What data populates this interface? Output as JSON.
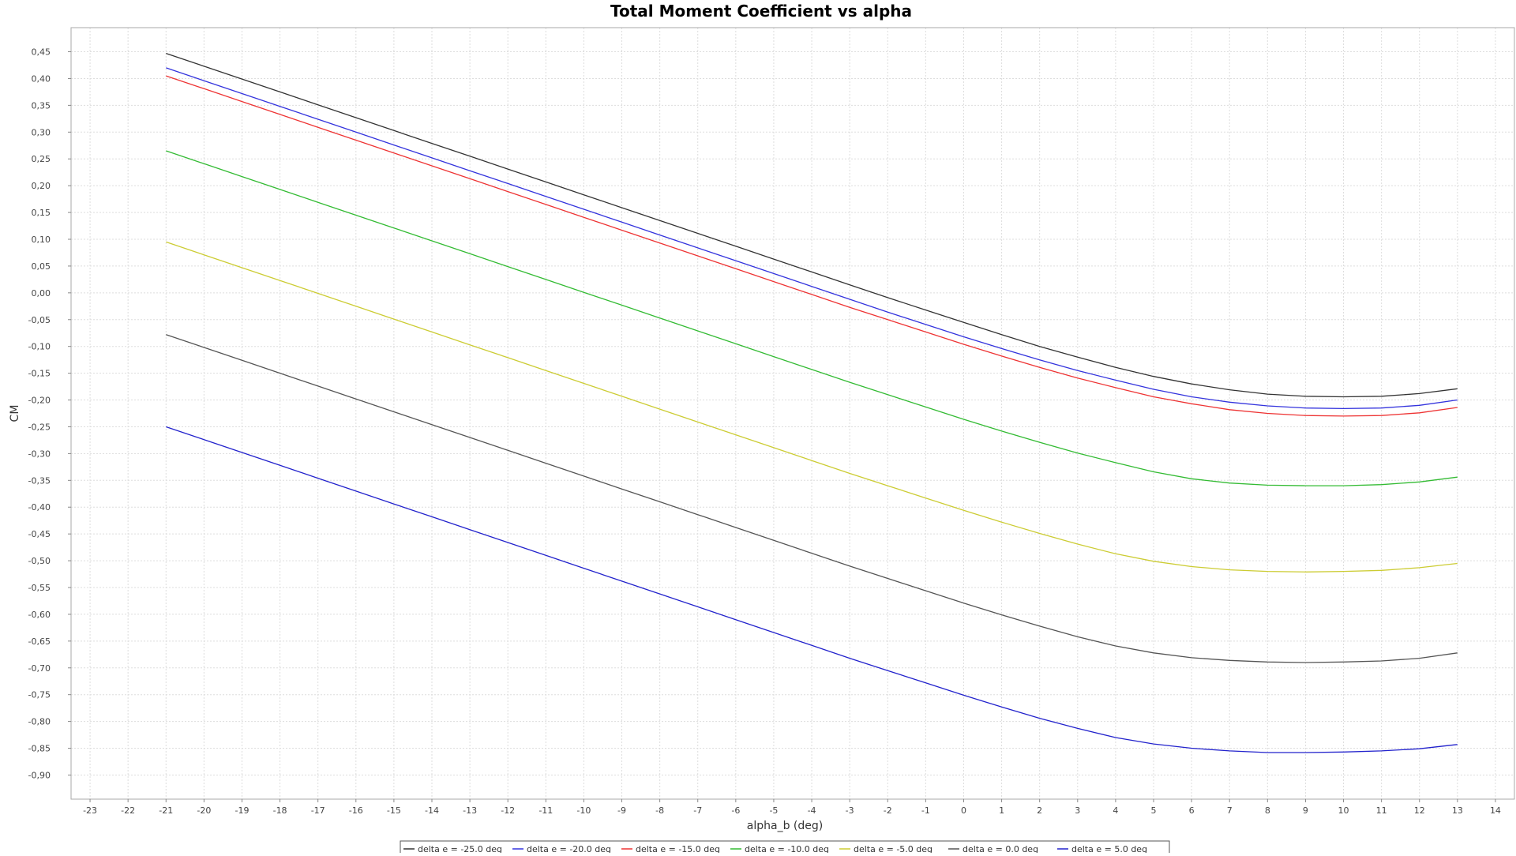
{
  "chart_data": {
    "type": "line",
    "title": "Total Moment Coefficient vs alpha",
    "xlabel": "alpha_b (deg)",
    "ylabel": "CM",
    "xlim": [
      -23.5,
      14.5
    ],
    "ylim": [
      -0.945,
      0.495
    ],
    "x_ticks": [
      -23,
      -22,
      -21,
      -20,
      -19,
      -18,
      -17,
      -16,
      -15,
      -14,
      -13,
      -12,
      -11,
      -10,
      -9,
      -8,
      -7,
      -6,
      -5,
      -4,
      -3,
      -2,
      -1,
      0,
      1,
      2,
      3,
      4,
      5,
      6,
      7,
      8,
      9,
      10,
      11,
      12,
      13,
      14
    ],
    "x_tick_labels": [
      "-23",
      "-22",
      "-21",
      "-20",
      "-19",
      "-18",
      "-17",
      "-16",
      "-15",
      "-14",
      "-13",
      "-12",
      "-11",
      "-10",
      "-9",
      "-8",
      "-7",
      "-6",
      "-5",
      "-4",
      "-3",
      "-2",
      "-1",
      "0",
      "1",
      "2",
      "3",
      "4",
      "5",
      "6",
      "7",
      "8",
      "9",
      "10",
      "11",
      "12",
      "13",
      "14"
    ],
    "y_ticks": [
      0.45,
      0.4,
      0.35,
      0.3,
      0.25,
      0.2,
      0.15,
      0.1,
      0.05,
      0.0,
      -0.05,
      -0.1,
      -0.15,
      -0.2,
      -0.25,
      -0.3,
      -0.35,
      -0.4,
      -0.45,
      -0.5,
      -0.55,
      -0.6,
      -0.65,
      -0.7,
      -0.75,
      -0.8,
      -0.85,
      -0.9
    ],
    "y_tick_labels": [
      "0,45",
      "0,40",
      "0,35",
      "0,30",
      "0,25",
      "0,20",
      "0,15",
      "0,10",
      "0,05",
      "0,00",
      "-0,05",
      "-0,10",
      "-0,15",
      "-0,20",
      "-0,25",
      "-0,30",
      "-0,35",
      "-0,40",
      "-0,45",
      "-0,50",
      "-0,55",
      "-0,60",
      "-0,65",
      "-0,70",
      "-0,75",
      "-0,80",
      "-0,85",
      "-0,90"
    ],
    "grid": true,
    "legend_position": "bottom-center",
    "x": [
      -21,
      -20,
      -19,
      -18,
      -17,
      -16,
      -15,
      -14,
      -13,
      -12,
      -11,
      -10,
      -9,
      -8,
      -7,
      -6,
      -5,
      -4,
      -3,
      -2,
      -1,
      0,
      1,
      2,
      3,
      4,
      5,
      6,
      7,
      8,
      9,
      10,
      11,
      12,
      13
    ],
    "series": [
      {
        "name": "delta e =  -25.0 deg",
        "color": "#333333",
        "values": [
          0.447,
          0.423,
          0.399,
          0.375,
          0.351,
          0.327,
          0.303,
          0.279,
          0.255,
          0.231,
          0.207,
          0.183,
          0.159,
          0.135,
          0.111,
          0.087,
          0.063,
          0.039,
          0.015,
          -0.009,
          -0.032,
          -0.055,
          -0.078,
          -0.1,
          -0.12,
          -0.139,
          -0.156,
          -0.17,
          -0.181,
          -0.189,
          -0.193,
          -0.194,
          -0.193,
          -0.188,
          -0.179
        ]
      },
      {
        "name": "delta e =  -20.0 deg",
        "color": "#3333dd",
        "values": [
          0.42,
          0.396,
          0.372,
          0.348,
          0.324,
          0.3,
          0.276,
          0.252,
          0.228,
          0.204,
          0.18,
          0.156,
          0.132,
          0.108,
          0.084,
          0.06,
          0.036,
          0.012,
          -0.012,
          -0.036,
          -0.059,
          -0.082,
          -0.104,
          -0.125,
          -0.145,
          -0.163,
          -0.18,
          -0.194,
          -0.204,
          -0.211,
          -0.215,
          -0.216,
          -0.215,
          -0.21,
          -0.2
        ]
      },
      {
        "name": "delta e =  -15.0 deg",
        "color": "#ee3333",
        "values": [
          0.405,
          0.381,
          0.357,
          0.333,
          0.309,
          0.285,
          0.261,
          0.237,
          0.213,
          0.189,
          0.165,
          0.141,
          0.117,
          0.093,
          0.069,
          0.045,
          0.021,
          -0.003,
          -0.027,
          -0.05,
          -0.073,
          -0.096,
          -0.118,
          -0.139,
          -0.159,
          -0.177,
          -0.194,
          -0.207,
          -0.218,
          -0.225,
          -0.229,
          -0.23,
          -0.229,
          -0.224,
          -0.214
        ]
      },
      {
        "name": "delta e =  -10.0 deg",
        "color": "#33bb33",
        "values": [
          0.265,
          0.241,
          0.217,
          0.193,
          0.169,
          0.145,
          0.121,
          0.097,
          0.073,
          0.049,
          0.025,
          0.001,
          -0.023,
          -0.047,
          -0.071,
          -0.095,
          -0.119,
          -0.143,
          -0.167,
          -0.19,
          -0.213,
          -0.236,
          -0.258,
          -0.279,
          -0.299,
          -0.317,
          -0.334,
          -0.347,
          -0.355,
          -0.359,
          -0.36,
          -0.36,
          -0.358,
          -0.353,
          -0.344
        ]
      },
      {
        "name": "delta e =   -5.0 deg",
        "color": "#cccc33",
        "values": [
          0.095,
          0.071,
          0.047,
          0.023,
          -0.001,
          -0.025,
          -0.049,
          -0.073,
          -0.097,
          -0.121,
          -0.145,
          -0.169,
          -0.193,
          -0.217,
          -0.241,
          -0.265,
          -0.289,
          -0.313,
          -0.337,
          -0.36,
          -0.383,
          -0.406,
          -0.428,
          -0.449,
          -0.469,
          -0.487,
          -0.501,
          -0.511,
          -0.517,
          -0.52,
          -0.521,
          -0.52,
          -0.518,
          -0.513,
          -0.505
        ]
      },
      {
        "name": "delta e =   0.0 deg",
        "color": "#555555",
        "values": [
          -0.078,
          -0.102,
          -0.126,
          -0.15,
          -0.174,
          -0.198,
          -0.222,
          -0.246,
          -0.27,
          -0.294,
          -0.318,
          -0.342,
          -0.366,
          -0.39,
          -0.414,
          -0.438,
          -0.462,
          -0.486,
          -0.51,
          -0.533,
          -0.556,
          -0.579,
          -0.601,
          -0.622,
          -0.642,
          -0.659,
          -0.672,
          -0.681,
          -0.686,
          -0.689,
          -0.69,
          -0.689,
          -0.687,
          -0.682,
          -0.672
        ]
      },
      {
        "name": "delta e =   5.0 deg",
        "color": "#2222cc",
        "values": [
          -0.25,
          -0.274,
          -0.298,
          -0.322,
          -0.346,
          -0.37,
          -0.394,
          -0.418,
          -0.442,
          -0.466,
          -0.49,
          -0.514,
          -0.538,
          -0.562,
          -0.586,
          -0.61,
          -0.634,
          -0.658,
          -0.682,
          -0.705,
          -0.728,
          -0.751,
          -0.773,
          -0.794,
          -0.813,
          -0.83,
          -0.842,
          -0.85,
          -0.855,
          -0.858,
          -0.858,
          -0.857,
          -0.855,
          -0.851,
          -0.843
        ]
      }
    ]
  }
}
